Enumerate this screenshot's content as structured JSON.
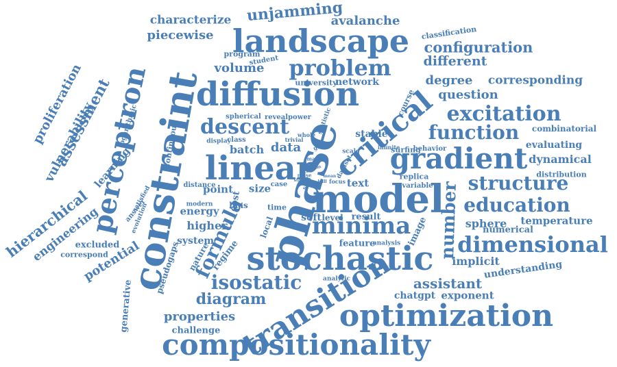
{
  "color": "#4a7eb6",
  "background": "#ffffff",
  "words": [
    "compositionality",
    "optimization",
    "transition",
    "stochastic",
    "constraint",
    "phase",
    "model",
    "linear",
    "diffusion",
    "landscape",
    "perceptron",
    "critical",
    "gradient",
    "dimensional",
    "minima",
    "isostatic",
    "excitation",
    "structure",
    "education",
    "descent",
    "problem",
    "function",
    "number",
    "formula",
    "diagram",
    "assistant",
    "properties",
    "unjamming",
    "configuration",
    "characterize",
    "piecewise",
    "avalanche",
    "assessment",
    "proliferation",
    "vulnerability",
    "hierarchical",
    "engineering",
    "learning",
    "potential",
    "excluded",
    "correspond",
    "generative",
    "pseudogaps",
    "nature",
    "regime",
    "system",
    "energy",
    "higher",
    "point",
    "size",
    "cost",
    "data",
    "batch",
    "volume",
    "different",
    "degree",
    "corresponding",
    "question",
    "combinatorial",
    "evaluating",
    "dynamical",
    "distribution",
    "sphere",
    "temperature",
    "implicit",
    "understanding",
    "exponent",
    "chatgpt",
    "challenge",
    "network",
    "university",
    "program",
    "student",
    "classification",
    "spherical",
    "reveal",
    "power",
    "stable",
    "infinite",
    "statistic",
    "course",
    "whole",
    "trivial",
    "glassy",
    "scale",
    "display",
    "class",
    "continuous",
    "logarithmic",
    "surfing",
    "behavior",
    "replica",
    "variable",
    "text",
    "focus",
    "dataset",
    "many",
    "case",
    "step",
    "noise",
    "distance",
    "modern",
    "bias",
    "time",
    "soft",
    "level",
    "result",
    "local",
    "image",
    "feature",
    "analysis",
    "numerical",
    "analytic",
    "evolution",
    "answer",
    "satisfied",
    "hull",
    "state",
    "mean",
    "random"
  ]
}
